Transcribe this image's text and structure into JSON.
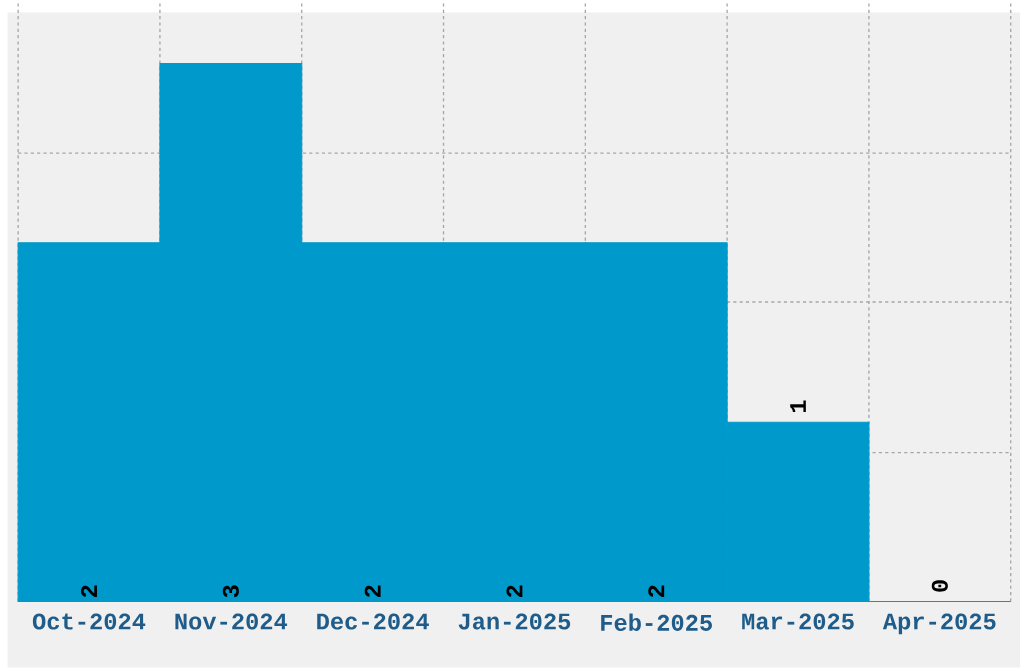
{
  "chart_data": {
    "type": "bar",
    "categories": [
      "Oct-2024",
      "Nov-2024",
      "Dec-2024",
      "Jan-2025",
      "Feb-2025",
      "Mar-2025",
      "Apr-2025"
    ],
    "values": [
      2,
      3,
      2,
      2,
      2,
      1,
      0
    ],
    "color": "#0099cc",
    "data_labels": true,
    "grid": true,
    "tick_labels": "x",
    "ylim": [
      0,
      3.35
    ],
    "yticks": [
      {
        "value": 0.83,
        "label": null
      },
      {
        "value": 1.67,
        "label": null
      },
      {
        "value": 2.5,
        "label": null
      }
    ]
  }
}
